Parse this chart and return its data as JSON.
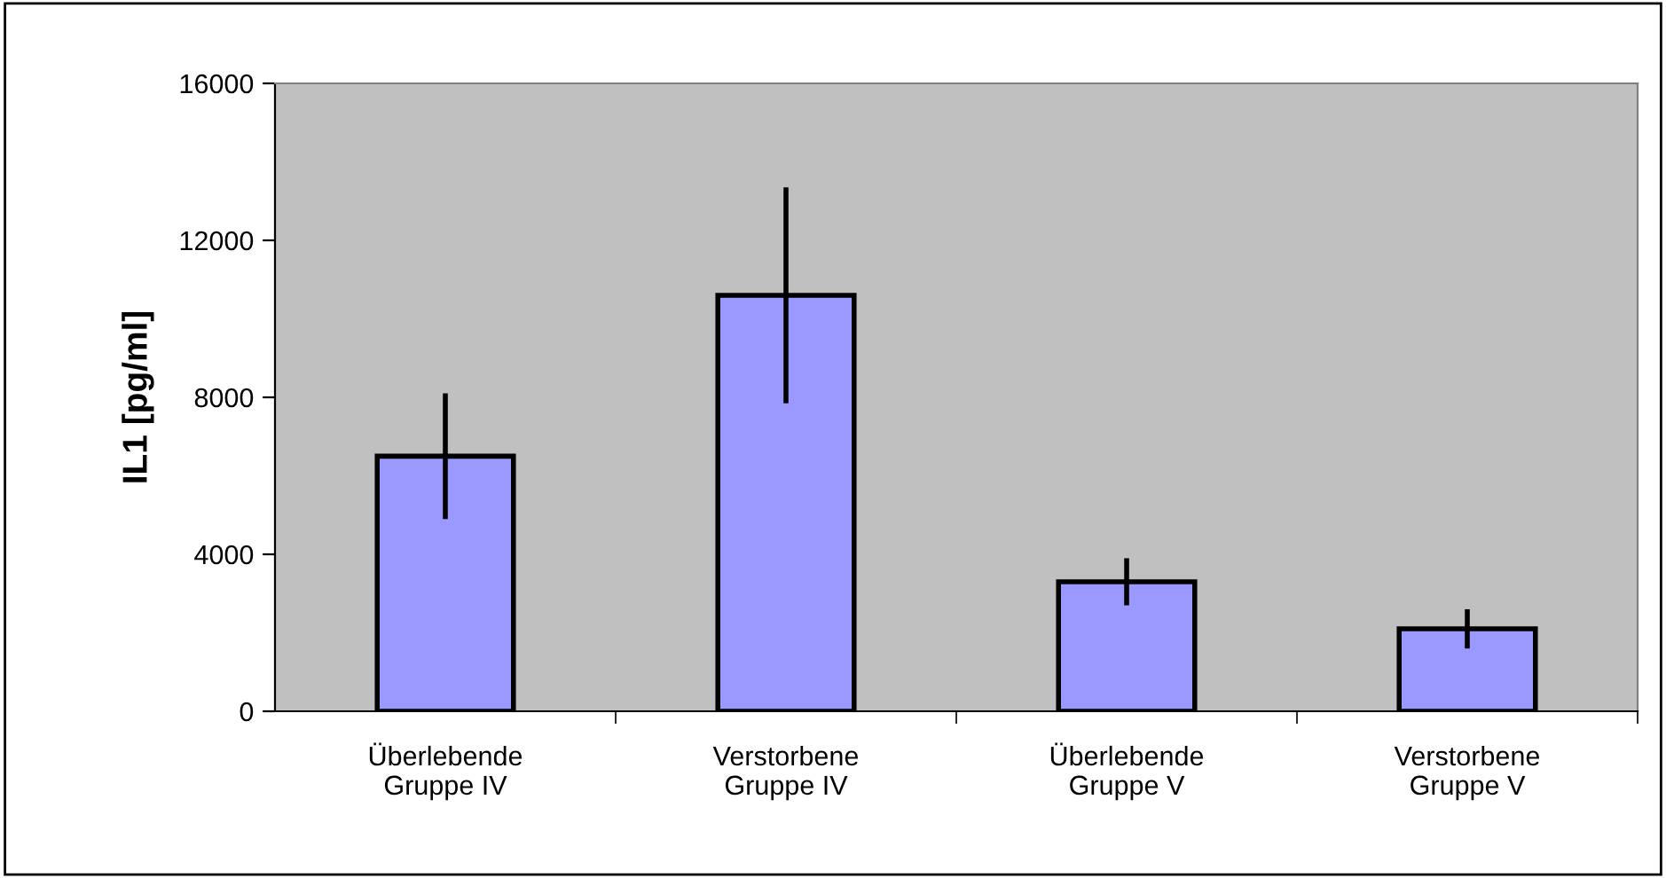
{
  "chart_data": {
    "type": "bar",
    "ylabel": "IL1 [pg/ml]",
    "categories": [
      "Überlebende\nGruppe IV",
      "Verstorbene\nGruppe IV",
      "Überlebende\nGruppe V",
      "Verstorbene\nGruppe V"
    ],
    "values": [
      6500,
      10600,
      3300,
      2100
    ],
    "errors": [
      1600,
      2750,
      600,
      500
    ],
    "color": "#9999ff",
    "ylim": [
      0,
      16000
    ],
    "yticks": [
      0,
      4000,
      8000,
      12000,
      16000
    ],
    "grid": false
  }
}
